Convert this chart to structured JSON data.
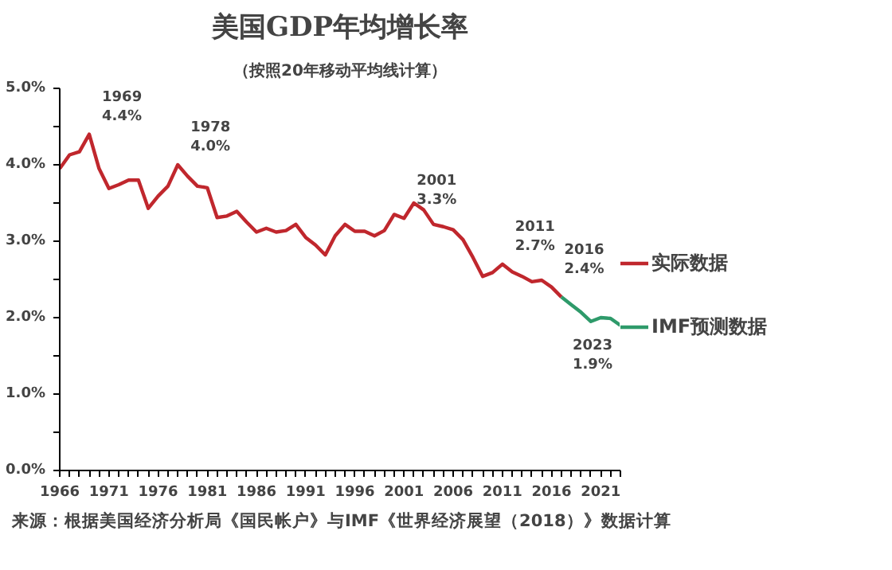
{
  "chart_data": {
    "type": "line",
    "title": "美国GDP年均增长率",
    "subtitle": "（按照20年移动平均线计算）",
    "series": [
      {
        "name": "实际数据",
        "color": "#c0272d",
        "x": [
          1966,
          1967,
          1968,
          1969,
          1970,
          1971,
          1972,
          1973,
          1974,
          1975,
          1976,
          1977,
          1978,
          1979,
          1980,
          1981,
          1982,
          1983,
          1984,
          1985,
          1986,
          1987,
          1988,
          1989,
          1990,
          1991,
          1992,
          1993,
          1994,
          1995,
          1996,
          1997,
          1998,
          1999,
          2000,
          2001,
          2002,
          2003,
          2004,
          2005,
          2006,
          2007,
          2008,
          2009,
          2010,
          2011,
          2012,
          2013,
          2014,
          2015,
          2016,
          2017
        ],
        "values": [
          3.95,
          4.13,
          4.17,
          4.4,
          3.95,
          3.69,
          3.74,
          3.8,
          3.8,
          3.43,
          3.59,
          3.72,
          4.0,
          3.85,
          3.72,
          3.7,
          3.31,
          3.33,
          3.39,
          3.25,
          3.12,
          3.17,
          3.12,
          3.14,
          3.22,
          3.05,
          2.95,
          2.82,
          3.07,
          3.22,
          3.13,
          3.13,
          3.07,
          3.14,
          3.35,
          3.3,
          3.5,
          3.41,
          3.22,
          3.19,
          3.15,
          3.02,
          2.79,
          2.54,
          2.59,
          2.7,
          2.6,
          2.54,
          2.47,
          2.49,
          2.4,
          2.27
        ]
      },
      {
        "name": "IMF预测数据",
        "color": "#2e9a6a",
        "x": [
          2017,
          2018,
          2019,
          2020,
          2021,
          2022,
          2023
        ],
        "values": [
          2.27,
          2.17,
          2.07,
          1.95,
          2.0,
          1.99,
          1.9
        ]
      }
    ],
    "xlim": [
      1966,
      2023
    ],
    "xticks": [
      1966,
      {
        "value": 1967,
        "label": null
      },
      {
        "value": 1968,
        "label": null
      },
      {
        "value": 1969,
        "label": null
      },
      {
        "value": 1970,
        "label": null
      },
      1971,
      {
        "value": 1972,
        "label": null
      },
      {
        "value": 1973,
        "label": null
      },
      {
        "value": 1974,
        "label": null
      },
      {
        "value": 1975,
        "label": null
      },
      1976,
      {
        "value": 1977,
        "label": null
      },
      {
        "value": 1978,
        "label": null
      },
      {
        "value": 1979,
        "label": null
      },
      {
        "value": 1980,
        "label": null
      },
      1981,
      {
        "value": 1982,
        "label": null
      },
      {
        "value": 1983,
        "label": null
      },
      {
        "value": 1984,
        "label": null
      },
      {
        "value": 1985,
        "label": null
      },
      1986,
      {
        "value": 1987,
        "label": null
      },
      {
        "value": 1988,
        "label": null
      },
      {
        "value": 1989,
        "label": null
      },
      {
        "value": 1990,
        "label": null
      },
      1991,
      {
        "value": 1992,
        "label": null
      },
      {
        "value": 1993,
        "label": null
      },
      {
        "value": 1994,
        "label": null
      },
      {
        "value": 1995,
        "label": null
      },
      1996,
      {
        "value": 1997,
        "label": null
      },
      {
        "value": 1998,
        "label": null
      },
      {
        "value": 1999,
        "label": null
      },
      {
        "value": 2000,
        "label": null
      },
      2001,
      {
        "value": 2002,
        "label": null
      },
      {
        "value": 2003,
        "label": null
      },
      {
        "value": 2004,
        "label": null
      },
      {
        "value": 2005,
        "label": null
      },
      2006,
      {
        "value": 2007,
        "label": null
      },
      {
        "value": 2008,
        "label": null
      },
      {
        "value": 2009,
        "label": null
      },
      {
        "value": 2010,
        "label": null
      },
      2011,
      {
        "value": 2012,
        "label": null
      },
      {
        "value": 2013,
        "label": null
      },
      {
        "value": 2014,
        "label": null
      },
      {
        "value": 2015,
        "label": null
      },
      2016,
      {
        "value": 2017,
        "label": null
      },
      {
        "value": 2018,
        "label": null
      },
      {
        "value": 2019,
        "label": null
      },
      {
        "value": 2020,
        "label": null
      },
      2021,
      {
        "value": 2022,
        "label": null
      },
      {
        "value": 2023,
        "label": null
      }
    ],
    "ylim": [
      0,
      5
    ],
    "yticks": [
      {
        "value": 0,
        "label": "0.0%"
      },
      {
        "value": 0.5,
        "label": null
      },
      {
        "value": 1,
        "label": "1.0%"
      },
      {
        "value": 1.5,
        "label": null
      },
      {
        "value": 2,
        "label": "2.0%"
      },
      {
        "value": 2.5,
        "label": null
      },
      {
        "value": 3,
        "label": "3.0%"
      },
      {
        "value": 3.5,
        "label": null
      },
      {
        "value": 4,
        "label": "4.0%"
      },
      {
        "value": 4.5,
        "label": null
      },
      {
        "value": 5,
        "label": "5.0%"
      }
    ],
    "annotations": [
      {
        "text": "1969\n4.4%",
        "x": 1969,
        "y": 4.4
      },
      {
        "text": "1978\n4.0%",
        "x": 1978,
        "y": 4.0
      },
      {
        "text": "2001\n3.3%",
        "x": 2001,
        "y": 3.3
      },
      {
        "text": "2011\n2.7%",
        "x": 2011,
        "y": 2.7
      },
      {
        "text": "2016\n2.4%",
        "x": 2016,
        "y": 2.4
      },
      {
        "text": "2023\n1.9%",
        "x": 2023,
        "y": 1.9
      },
      "来源：根据美国经济分析局《国民帐户》与IMF《世界经济展望（2018）》数据计算"
    ],
    "grid": false,
    "legend": "right",
    "marker": "none",
    "line_style": "solid"
  }
}
